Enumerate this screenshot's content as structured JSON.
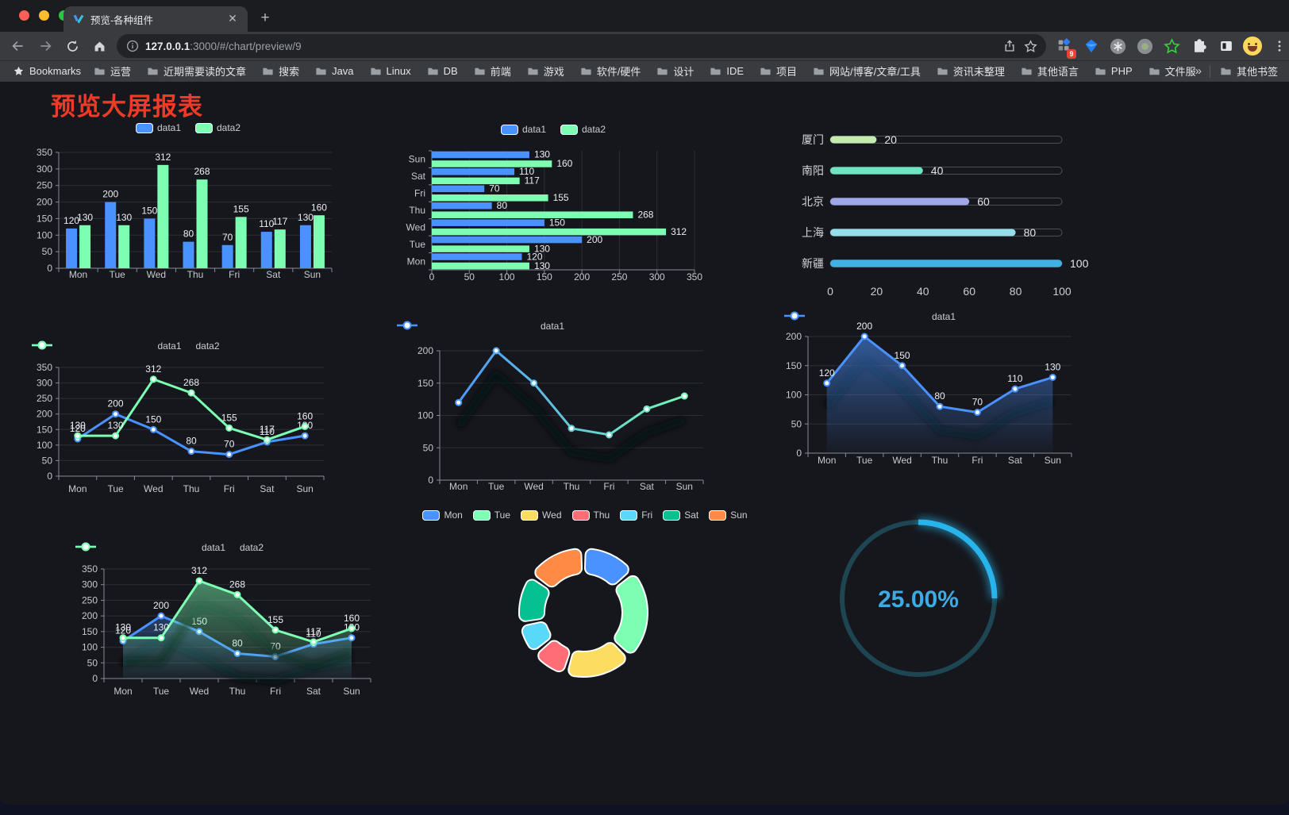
{
  "browser": {
    "tab_title": "预览-各种组件",
    "url_full": "127.0.0.1:3000/#/chart/preview/9",
    "url_host": "127.0.0.1",
    "url_rest": ":3000/#/chart/preview/9",
    "bookmarks_root": "Bookmarks",
    "bookmarks": [
      "运营",
      "近期需要读的文章",
      "搜索",
      "Java",
      "Linux",
      "DB",
      "前端",
      "游戏",
      "软件/硬件",
      "设计",
      "IDE",
      "项目",
      "网站/博客/文章/工具",
      "资讯未整理",
      "其他语言",
      "PHP",
      "文件服务器"
    ],
    "overflow_chevron": "»",
    "other_bookmarks": "其他书签",
    "extension_badge": "9"
  },
  "page": {
    "title": "预览大屏报表",
    "title_color": "#ee3b28"
  },
  "colors": {
    "accent_blue": "#4992ff",
    "accent_green": "#7cffb2",
    "title_red": "#ee3b28"
  },
  "chart_data": [
    {
      "id": "c1",
      "type": "bar",
      "title": "",
      "categories": [
        "Mon",
        "Tue",
        "Wed",
        "Thu",
        "Fri",
        "Sat",
        "Sun"
      ],
      "series": [
        {
          "name": "data1",
          "color": "#4992ff",
          "values": [
            120,
            200,
            150,
            80,
            70,
            110,
            130
          ]
        },
        {
          "name": "data2",
          "color": "#7cffb2",
          "values": [
            130,
            130,
            312,
            268,
            155,
            117,
            160
          ]
        }
      ],
      "ylim": [
        0,
        350
      ],
      "ytick_step": 50,
      "grid": true,
      "value_labels": true,
      "legend_position": "top",
      "legend_icon": "rect"
    },
    {
      "id": "c2",
      "type": "bar-horizontal",
      "title": "",
      "categories": [
        "Mon",
        "Tue",
        "Wed",
        "Thu",
        "Fri",
        "Sat",
        "Sun"
      ],
      "series": [
        {
          "name": "data1",
          "color": "#4992ff",
          "values": [
            120,
            200,
            150,
            80,
            70,
            110,
            130
          ]
        },
        {
          "name": "data2",
          "color": "#7cffb2",
          "values": [
            130,
            130,
            312,
            268,
            155,
            117,
            160
          ]
        }
      ],
      "xlim": [
        0,
        350
      ],
      "xtick_step": 50,
      "grid": true,
      "value_labels": true,
      "legend_position": "top",
      "legend_icon": "rect"
    },
    {
      "id": "c3",
      "type": "progress-bars",
      "title": "",
      "rows": [
        {
          "label": "厦门",
          "value": 20,
          "color": "#c4ebad"
        },
        {
          "label": "南阳",
          "value": 40,
          "color": "#6be6c1"
        },
        {
          "label": "北京",
          "value": 60,
          "color": "#a0a7e6"
        },
        {
          "label": "上海",
          "value": 80,
          "color": "#96dee8"
        },
        {
          "label": "新疆",
          "value": 100,
          "color": "#3fb1e3"
        }
      ],
      "xlim": [
        0,
        100
      ],
      "xticks": [
        0,
        20,
        40,
        60,
        80,
        100
      ]
    },
    {
      "id": "c4",
      "type": "line",
      "title": "",
      "categories": [
        "Mon",
        "Tue",
        "Wed",
        "Thu",
        "Fri",
        "Sat",
        "Sun"
      ],
      "series": [
        {
          "name": "data1",
          "color": "#4992ff",
          "values": [
            120,
            200,
            150,
            80,
            70,
            110,
            130
          ]
        },
        {
          "name": "data2",
          "color": "#7cffb2",
          "values": [
            130,
            130,
            312,
            268,
            155,
            117,
            160
          ]
        }
      ],
      "ylim": [
        0,
        350
      ],
      "ytick_step": 50,
      "grid": true,
      "value_labels": true,
      "legend_position": "top",
      "legend_icon": "line"
    },
    {
      "id": "c5",
      "type": "line",
      "title": "",
      "categories": [
        "Mon",
        "Tue",
        "Wed",
        "Thu",
        "Fri",
        "Sat",
        "Sun"
      ],
      "series": [
        {
          "name": "data1",
          "color_gradient": [
            "#4992ff",
            "#7cffb2"
          ],
          "values": [
            120,
            200,
            150,
            80,
            70,
            110,
            130
          ]
        }
      ],
      "ylim": [
        0,
        200
      ],
      "ytick_step": 50,
      "grid": true,
      "value_labels": false,
      "shadow": true,
      "legend_position": "top",
      "legend_icon": "line"
    },
    {
      "id": "c6",
      "type": "area",
      "title": "",
      "categories": [
        "Mon",
        "Tue",
        "Wed",
        "Thu",
        "Fri",
        "Sat",
        "Sun"
      ],
      "series": [
        {
          "name": "data1",
          "color": "#4992ff",
          "values": [
            120,
            200,
            150,
            80,
            70,
            110,
            130
          ]
        }
      ],
      "ylim": [
        0,
        200
      ],
      "ytick_step": 50,
      "grid": true,
      "value_labels": true,
      "shadow": true,
      "legend_position": "top",
      "legend_icon": "line"
    },
    {
      "id": "c7",
      "type": "area",
      "title": "",
      "categories": [
        "Mon",
        "Tue",
        "Wed",
        "Thu",
        "Fri",
        "Sat",
        "Sun"
      ],
      "series": [
        {
          "name": "data1",
          "color": "#4992ff",
          "values": [
            120,
            200,
            150,
            80,
            70,
            110,
            130
          ]
        },
        {
          "name": "data2",
          "color": "#7cffb2",
          "values": [
            130,
            130,
            312,
            268,
            155,
            117,
            160
          ]
        }
      ],
      "ylim": [
        0,
        350
      ],
      "ytick_step": 50,
      "grid": true,
      "value_labels": true,
      "shadow": true,
      "legend_position": "top",
      "legend_icon": "line"
    },
    {
      "id": "c8",
      "type": "pie",
      "title": "",
      "categories": [
        "Mon",
        "Tue",
        "Wed",
        "Thu",
        "Fri",
        "Sat",
        "Sun"
      ],
      "values": [
        120,
        200,
        150,
        80,
        70,
        110,
        130
      ],
      "colors": [
        "#4992ff",
        "#7cffb2",
        "#fddd60",
        "#ff6e76",
        "#58d9f9",
        "#05c091",
        "#ff8a45"
      ],
      "donut": true,
      "legend_position": "top",
      "legend_icon": "rect"
    },
    {
      "id": "c9",
      "type": "gauge",
      "title": "",
      "value": 25,
      "max": 100,
      "label": "25.00%",
      "color": "#28b4ea",
      "track_color": "#1d4552",
      "text_color": "#3fa9e1"
    }
  ]
}
